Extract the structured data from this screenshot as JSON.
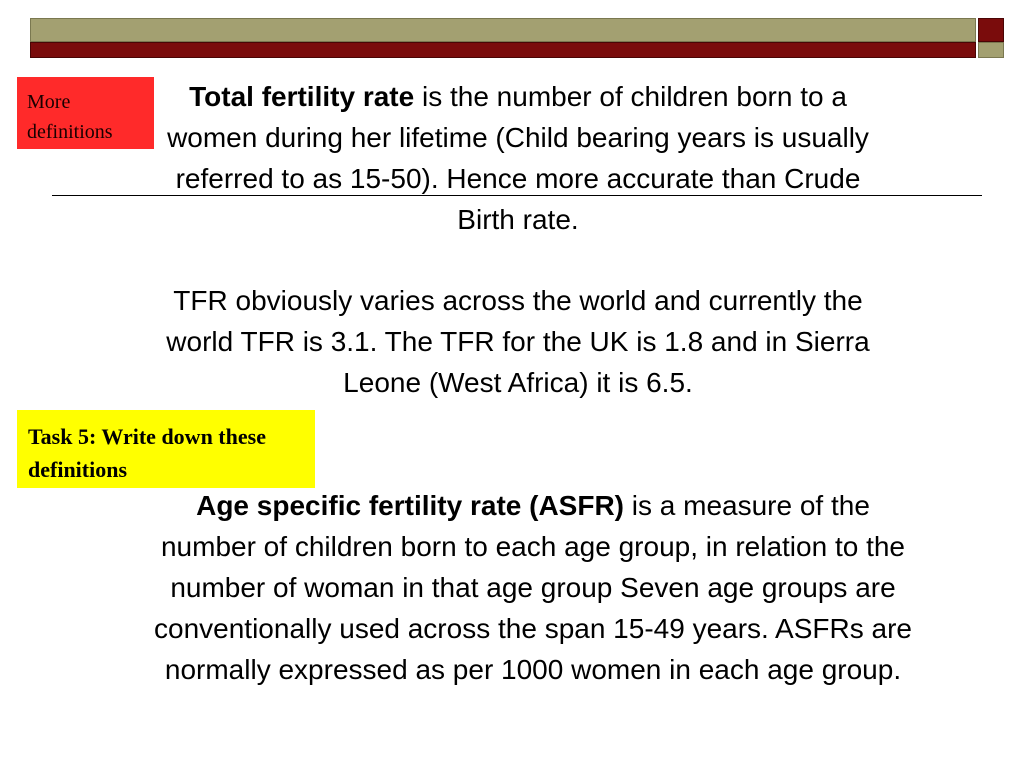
{
  "sidebox_red": {
    "text": "More definitions"
  },
  "sidebox_yellow": {
    "text": "Task 5: Write down these definitions"
  },
  "paragraphs": [
    {
      "term": "Total fertility rate",
      "text": " is the number of children born to a women during her lifetime (Child bearing years is usually referred to as 15-50). Hence more accurate than Crude Birth rate."
    },
    {
      "term": "",
      "text": "TFR obviously varies across the world and currently the world TFR is 3.1. The TFR for the UK is 1.8 and in Sierra Leone (West Africa) it is 6.5."
    },
    {
      "term": "Age specific fertility rate (ASFR)",
      "text": " is a measure of the number of children born to each age group, in relation to the number of woman in that age group Seven age groups are conventionally used across the span 15-49 years. ASFRs are normally expressed as per 1000 women in each age group."
    }
  ],
  "colors": {
    "header_olive": "#a3a071",
    "header_maroon": "#7a0c0c",
    "box_red": "#ff2a2a",
    "box_yellow": "#ffff00"
  }
}
